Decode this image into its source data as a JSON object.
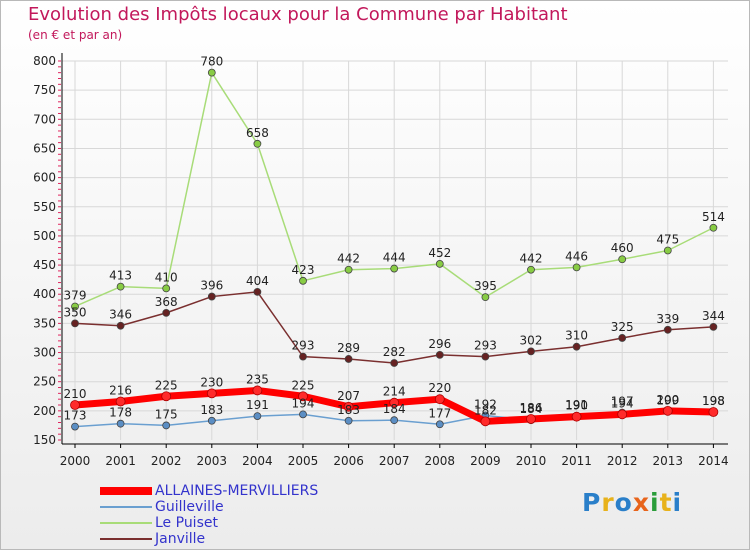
{
  "title": "Evolution des Impôts locaux pour la Commune par Habitant",
  "subtitle": "(en € et par an)",
  "logo": "Proxiti",
  "colors": {
    "title": "#c2185b",
    "legend_text": "#3333cc",
    "grid": "#d8d8d8",
    "axis": "#000000",
    "tick_marks": "#e0245e"
  },
  "chart_data": {
    "type": "line",
    "x": [
      2000,
      2001,
      2002,
      2003,
      2004,
      2005,
      2006,
      2007,
      2008,
      2009,
      2010,
      2011,
      2012,
      2013,
      2014
    ],
    "ylim": [
      150,
      800
    ],
    "yticks": [
      150,
      200,
      250,
      300,
      350,
      400,
      450,
      500,
      550,
      600,
      650,
      700,
      750,
      800
    ],
    "grid": true,
    "legend_position": "bottom-left",
    "series": [
      {
        "name": "ALLAINES-MERVILLIERS",
        "color": "#ee0000",
        "line_color": "#ff0000",
        "highlight": true,
        "values": [
          210,
          216,
          225,
          230,
          235,
          225,
          207,
          214,
          220,
          182,
          186,
          190,
          194,
          200,
          198
        ]
      },
      {
        "name": "Guilleville",
        "color": "#5b8ec4",
        "line_color": "#6a9fd0",
        "highlight": false,
        "values": [
          173,
          178,
          175,
          183,
          191,
          194,
          183,
          184,
          177,
          192,
          184,
          191,
          197,
          199,
          198
        ]
      },
      {
        "name": "Le Puiset",
        "color": "#88cc44",
        "line_color": "#a8dc78",
        "highlight": false,
        "values": [
          379,
          413,
          410,
          780,
          658,
          423,
          442,
          444,
          452,
          395,
          442,
          446,
          460,
          475,
          514
        ]
      },
      {
        "name": "Janville",
        "color": "#662222",
        "line_color": "#7a2f2f",
        "highlight": false,
        "values": [
          350,
          346,
          368,
          396,
          404,
          293,
          289,
          282,
          296,
          293,
          302,
          310,
          325,
          339,
          344
        ]
      }
    ]
  }
}
